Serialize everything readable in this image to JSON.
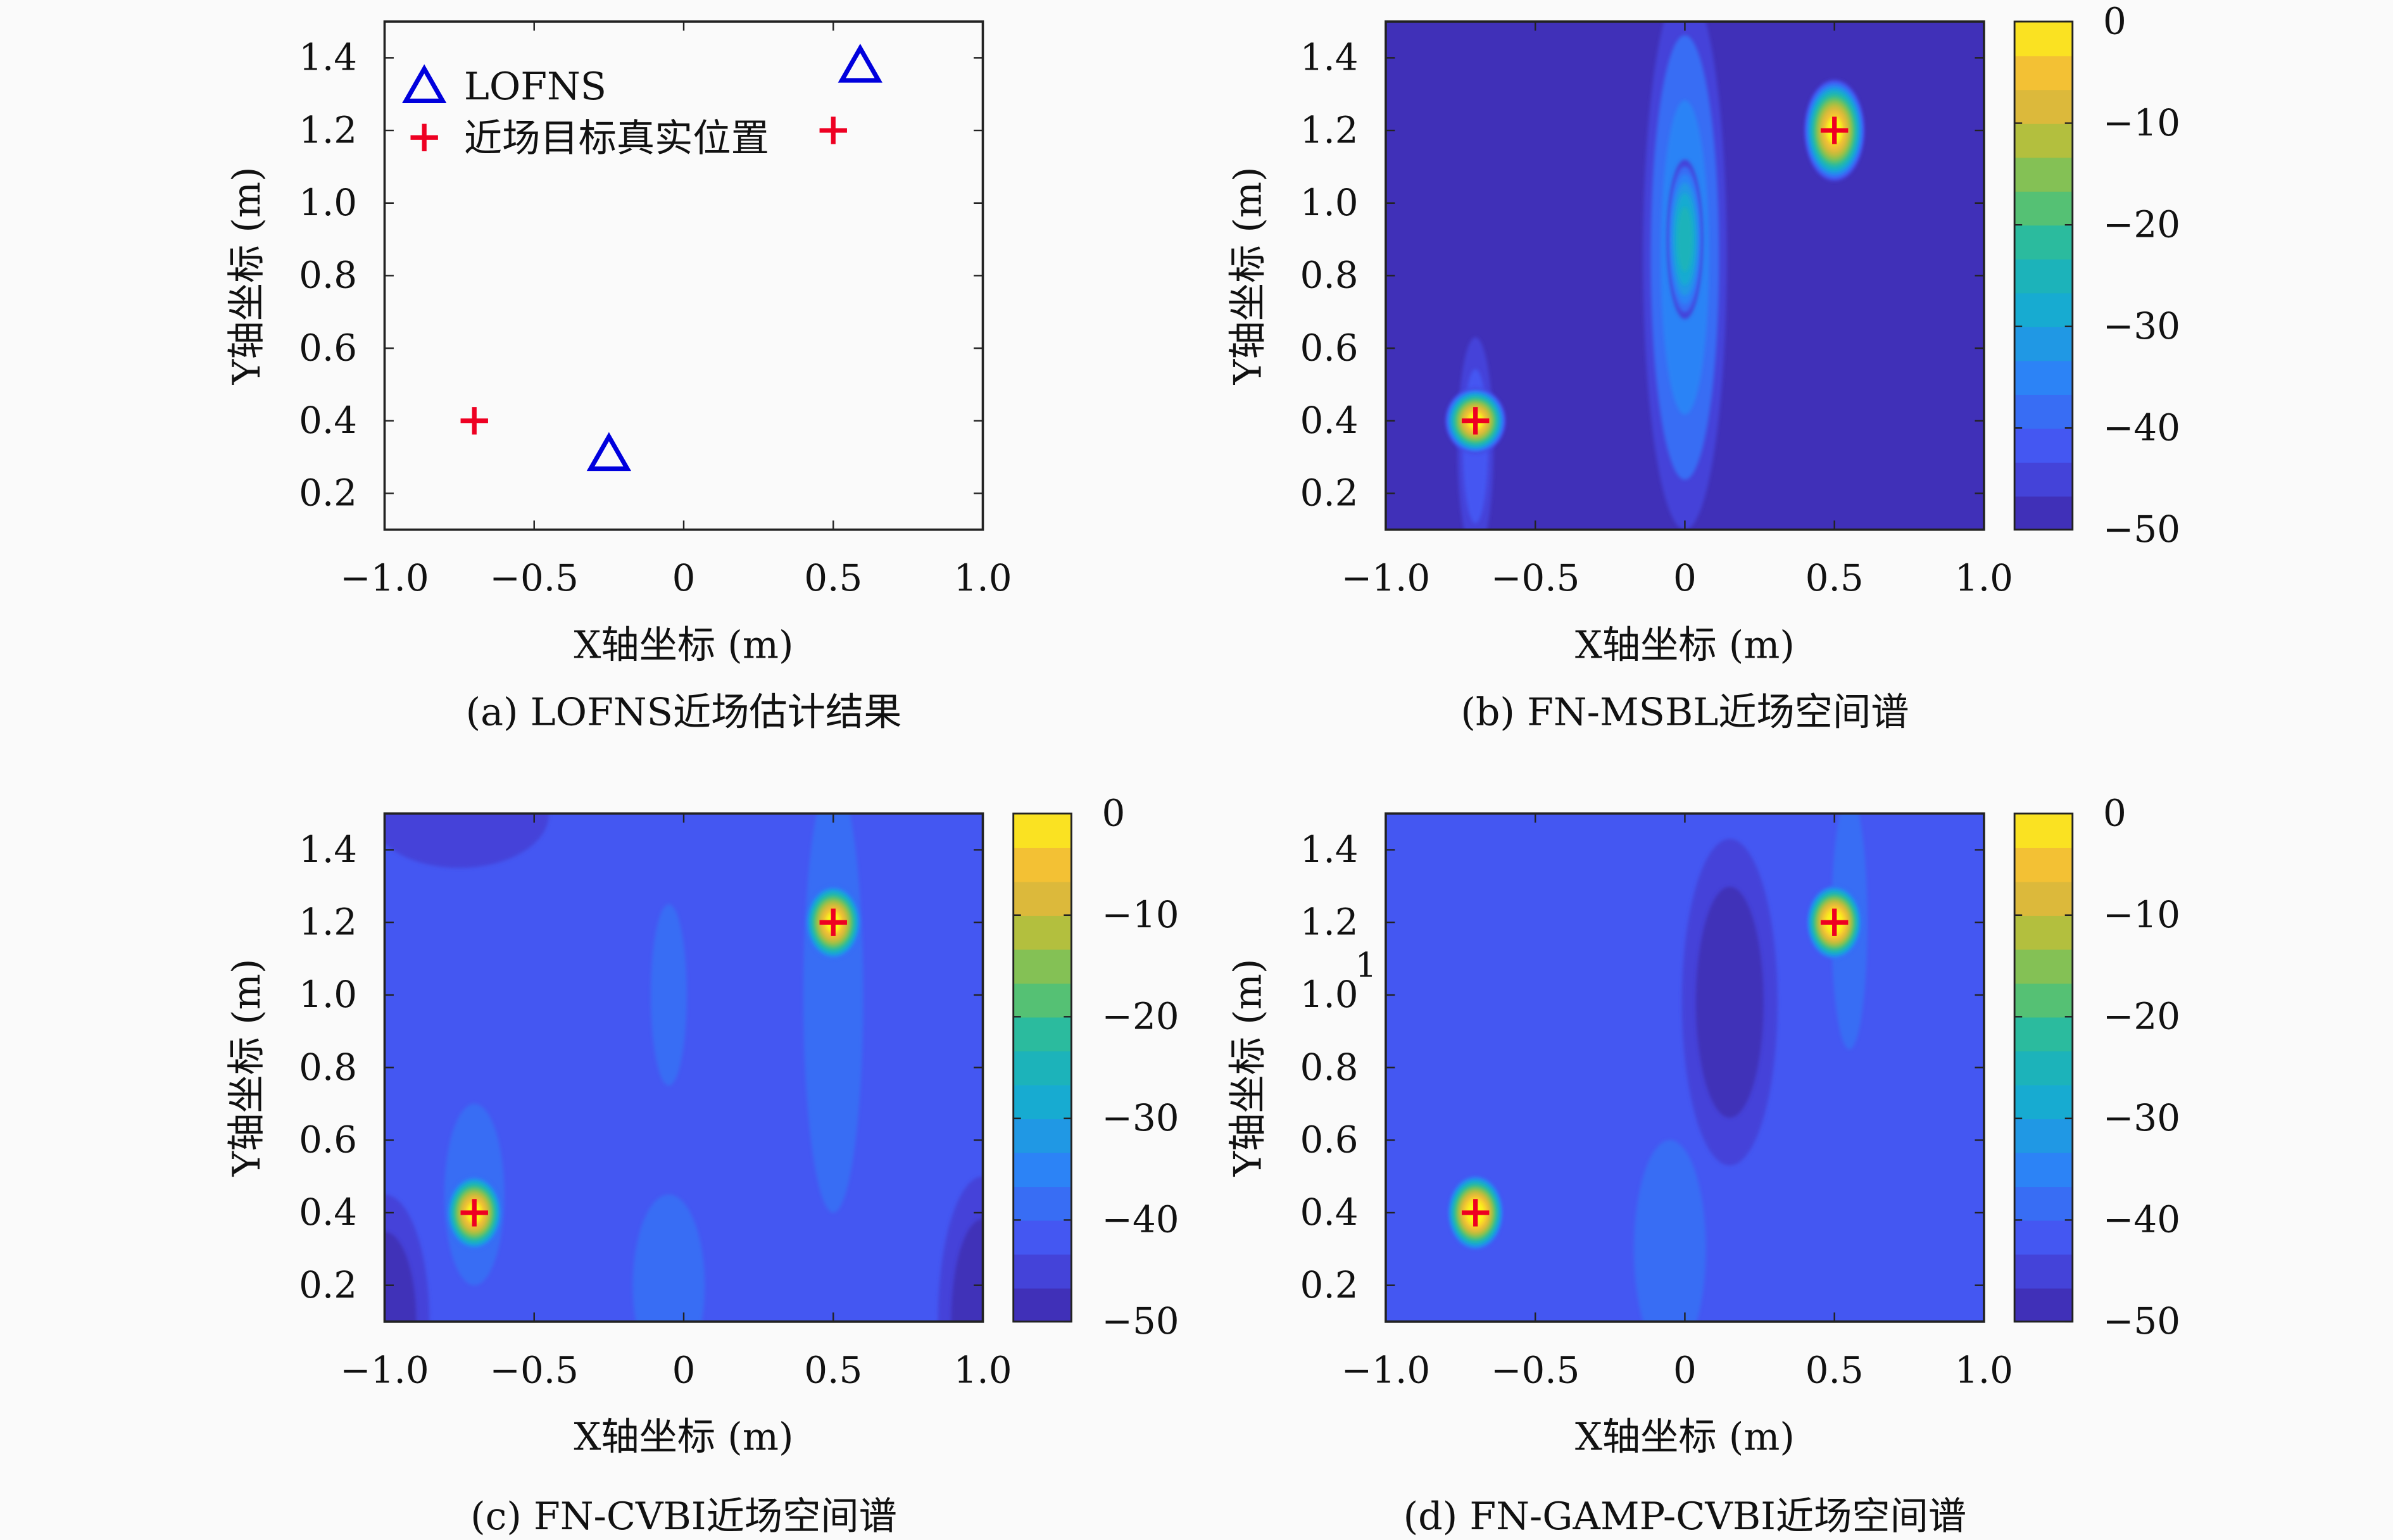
{
  "chart_data": [
    {
      "type": "scatter",
      "caption": "(a) LOFNS近场估计结果",
      "xlabel": "X轴坐标 (m)",
      "ylabel": "Y轴坐标 (m)",
      "xlim": [
        -1.0,
        1.0
      ],
      "ylim": [
        0.1,
        1.5
      ],
      "xticks": [
        "−1.0",
        "−0.5",
        "0",
        "0.5",
        "1.0"
      ],
      "xtick_values": [
        -1.0,
        -0.5,
        0,
        0.5,
        1.0
      ],
      "yticks": [
        "0.2",
        "0.4",
        "0.6",
        "0.8",
        "1.0",
        "1.2",
        "1.4"
      ],
      "ytick_values": [
        0.2,
        0.4,
        0.6,
        0.8,
        1.0,
        1.2,
        1.4
      ],
      "legend_position": "top-left",
      "series": [
        {
          "name": "LOFNS",
          "marker": "triangle",
          "color": "#0000dd",
          "points": [
            [
              -0.25,
              0.31
            ],
            [
              0.59,
              1.38
            ]
          ]
        },
        {
          "name": "近场目标真实位置",
          "marker": "plus",
          "color": "#ee0022",
          "points": [
            [
              -0.7,
              0.4
            ],
            [
              0.5,
              1.2
            ]
          ]
        }
      ]
    },
    {
      "type": "heatmap",
      "caption": "(b) FN-MSBL近场空间谱",
      "xlabel": "X轴坐标 (m)",
      "ylabel": "Y轴坐标 (m)",
      "xlim": [
        -1.0,
        1.0
      ],
      "ylim": [
        0.1,
        1.5
      ],
      "xticks": [
        "−1.0",
        "−0.5",
        "0",
        "0.5",
        "1.0"
      ],
      "xtick_values": [
        -1.0,
        -0.5,
        0,
        0.5,
        1.0
      ],
      "yticks": [
        "0.2",
        "0.4",
        "0.6",
        "0.8",
        "1.0",
        "1.2",
        "1.4"
      ],
      "ytick_values": [
        0.2,
        0.4,
        0.6,
        0.8,
        1.0,
        1.2,
        1.4
      ],
      "colorbar": {
        "range": [
          -50,
          0
        ],
        "ticks": [
          "0",
          "−10",
          "−20",
          "−30",
          "−40",
          "−50"
        ],
        "tick_values": [
          0,
          -10,
          -20,
          -30,
          -40,
          -50
        ]
      },
      "background_db": -47,
      "features_db": [
        {
          "x": 0.0,
          "y": 0.85,
          "sx": 0.14,
          "sy": 0.75,
          "level": -36
        },
        {
          "x": 0.0,
          "y": 0.9,
          "sx": 0.06,
          "sy": 0.22,
          "level": -26
        },
        {
          "x": -0.7,
          "y": 0.33,
          "sx": 0.06,
          "sy": 0.3,
          "level": -42
        },
        {
          "x": -0.7,
          "y": 0.4,
          "sx": 0.1,
          "sy": 0.09,
          "level": 0
        },
        {
          "x": 0.5,
          "y": 1.2,
          "sx": 0.1,
          "sy": 0.14,
          "level": 0
        }
      ],
      "targets": [
        [
          -0.7,
          0.4
        ],
        [
          0.5,
          1.2
        ]
      ]
    },
    {
      "type": "heatmap",
      "caption": "(c) FN-CVBI近场空间谱",
      "xlabel": "X轴坐标 (m)",
      "ylabel": "Y轴坐标 (m)",
      "xlim": [
        -1.0,
        1.0
      ],
      "ylim": [
        0.1,
        1.5
      ],
      "xticks": [
        "−1.0",
        "−0.5",
        "0",
        "0.5",
        "1.0"
      ],
      "xtick_values": [
        -1.0,
        -0.5,
        0,
        0.5,
        1.0
      ],
      "yticks": [
        "0.2",
        "0.4",
        "0.6",
        "0.8",
        "1.0",
        "1.2",
        "1.4"
      ],
      "ytick_values": [
        0.2,
        0.4,
        0.6,
        0.8,
        1.0,
        1.2,
        1.4
      ],
      "colorbar": {
        "range": [
          -50,
          0
        ],
        "ticks": [
          "0",
          "−10",
          "−20",
          "−30",
          "−40",
          "−50"
        ],
        "tick_values": [
          0,
          -10,
          -20,
          -30,
          -40,
          -50
        ]
      },
      "background_db": -41,
      "features_db": [
        {
          "x": -1.0,
          "y": 0.1,
          "sx": 0.15,
          "sy": 0.35,
          "level": -47
        },
        {
          "x": 1.0,
          "y": 0.1,
          "sx": 0.15,
          "sy": 0.4,
          "level": -47
        },
        {
          "x": -0.75,
          "y": 1.5,
          "sx": 0.3,
          "sy": 0.15,
          "level": -44
        },
        {
          "x": 0.5,
          "y": 1.0,
          "sx": 0.1,
          "sy": 0.6,
          "level": -37
        },
        {
          "x": -0.05,
          "y": 1.0,
          "sx": 0.06,
          "sy": 0.25,
          "level": -37
        },
        {
          "x": -0.05,
          "y": 0.2,
          "sx": 0.12,
          "sy": 0.25,
          "level": -37
        },
        {
          "x": -0.7,
          "y": 0.45,
          "sx": 0.1,
          "sy": 0.25,
          "level": -38
        },
        {
          "x": -0.7,
          "y": 0.4,
          "sx": 0.09,
          "sy": 0.1,
          "level": 0
        },
        {
          "x": 0.5,
          "y": 1.2,
          "sx": 0.09,
          "sy": 0.1,
          "level": 0
        }
      ],
      "targets": [
        [
          -0.7,
          0.4
        ],
        [
          0.5,
          1.2
        ]
      ]
    },
    {
      "type": "heatmap",
      "caption": "(d) FN-GAMP-CVBI近场空间谱",
      "xlabel": "X轴坐标 (m)",
      "ylabel": "Y轴坐标 (m)",
      "xlim": [
        -1.0,
        1.0
      ],
      "ylim": [
        0.1,
        1.5
      ],
      "xticks": [
        "−1.0",
        "−0.5",
        "0",
        "0.5",
        "1.0"
      ],
      "xtick_values": [
        -1.0,
        -0.5,
        0,
        0.5,
        1.0
      ],
      "yticks": [
        "0.2",
        "0.4",
        "0.6",
        "0.8",
        "1.0",
        "1.2",
        "1.4"
      ],
      "ytick_values": [
        0.2,
        0.4,
        0.6,
        0.8,
        1.0,
        1.2,
        1.4
      ],
      "colorbar": {
        "range": [
          -50,
          0
        ],
        "ticks": [
          "0",
          "−10",
          "−20",
          "−30",
          "−40",
          "−50"
        ],
        "tick_values": [
          0,
          -10,
          -20,
          -30,
          -40,
          -50
        ]
      },
      "background_db": -42,
      "features_db": [
        {
          "x": 0.15,
          "y": 0.98,
          "sx": 0.16,
          "sy": 0.45,
          "level": -47
        },
        {
          "x": 0.55,
          "y": 1.2,
          "sx": 0.06,
          "sy": 0.35,
          "level": -38
        },
        {
          "x": -0.05,
          "y": 0.3,
          "sx": 0.12,
          "sy": 0.3,
          "level": -39
        },
        {
          "x": -0.7,
          "y": 0.4,
          "sx": 0.09,
          "sy": 0.1,
          "level": 0
        },
        {
          "x": 0.5,
          "y": 1.2,
          "sx": 0.09,
          "sy": 0.1,
          "level": 0
        }
      ],
      "targets": [
        [
          -0.7,
          0.4
        ],
        [
          0.5,
          1.2
        ]
      ],
      "stray_label": "1"
    }
  ]
}
